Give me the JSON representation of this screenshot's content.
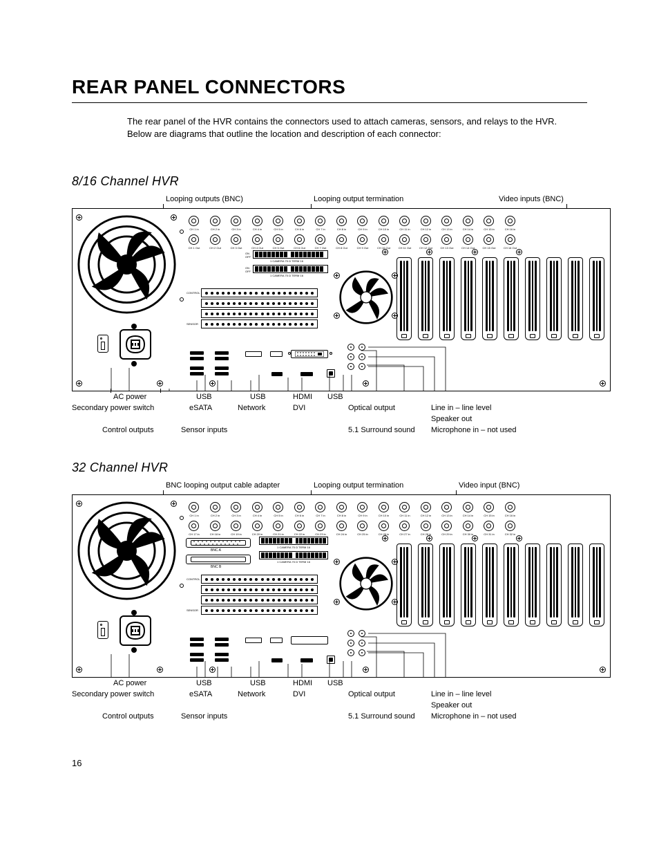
{
  "page": {
    "title": "REAR PANEL CONNECTORS",
    "intro": "The rear panel of the HVR contains the connectors used to attach cameras, sensors, and relays to the HVR. Below are diagrams that outline the location and description of each connector:",
    "page_number": "16"
  },
  "sections": [
    {
      "title": "8/16 Channel HVR",
      "top_labels": {
        "a": "Looping outputs (BNC)",
        "b": "Looping output termination",
        "c": "Video inputs (BNC)"
      },
      "bnc_in": [
        "CH 1 in",
        "CH 2 in",
        "CH 3 in",
        "CH 4 in",
        "CH 5 in",
        "CH 6 in",
        "CH 7 in",
        "CH 8 in",
        "CH 9 in",
        "CH 10 in",
        "CH 11 in",
        "CH 12 in",
        "CH 13 in",
        "CH 14 in",
        "CH 15 in",
        "CH 16 in"
      ],
      "bnc_out": [
        "CH 1 Out",
        "CH 2 Out",
        "CH 3 Out",
        "CH 4 Out",
        "CH 5 Out",
        "CH 6 Out",
        "CH 7 Out",
        "CH 8 Out",
        "CH 9 Out",
        "CH 10 Out",
        "CH 11 Out",
        "CH 12 Out",
        "CH 13 Out",
        "CH 14 Out",
        "CH 15 Out",
        "CH 16 Out"
      ],
      "dip_label": "1 CAMERA 75 Ω  TERM  16",
      "dip_sides": {
        "on": "ON",
        "off": "OFF"
      },
      "ctrl_label": "CONTROL",
      "sensor_label": "SENSOR"
    },
    {
      "title": "32 Channel HVR",
      "top_labels": {
        "a": "BNC looping output cable adapter",
        "b": "Looping output termination",
        "c": "Video input (BNC)"
      },
      "bnc_row1": [
        "CH 1 in",
        "CH 2 in",
        "CH 3 in",
        "CH 4 in",
        "CH 5 in",
        "CH 6 in",
        "CH 7 in",
        "CH 8 in",
        "CH 9 in",
        "CH 10 in",
        "CH 11 in",
        "CH 12 in",
        "CH 13 in",
        "CH 14 in",
        "CH 15 in",
        "CH 16 in"
      ],
      "bnc_row2": [
        "CH 17 in",
        "CH 18 in",
        "CH 19 in",
        "CH 20 in",
        "CH 21 in",
        "CH 22 in",
        "CH 23 in",
        "CH 24 in",
        "CH 25 in",
        "CH 26 in",
        "CH 27 in",
        "CH 28 in",
        "CH 29 in",
        "CH 30 in",
        "CH 31 in",
        "CH 32 in"
      ],
      "db25_a": "BNC A",
      "db25_b": "BNC B"
    }
  ],
  "callouts": {
    "row1": {
      "ac": "AC power",
      "usb1": "USB",
      "usb2": "USB",
      "hdmi": "HDMI",
      "usb3": "USB"
    },
    "row2": {
      "sec": "Secondary power switch",
      "esata": "eSATA",
      "net": "Network",
      "dvi": "DVI",
      "opt": "Optical output",
      "line": "Line in – line level"
    },
    "row3": {
      "ctrl": "Control outputs",
      "sens": "Sensor inputs",
      "surr": "5.1 Surround sound",
      "spk": "Speaker out",
      "mic": "Microphone in – not used"
    }
  },
  "colors": {
    "fg": "#000000",
    "bg": "#ffffff"
  }
}
